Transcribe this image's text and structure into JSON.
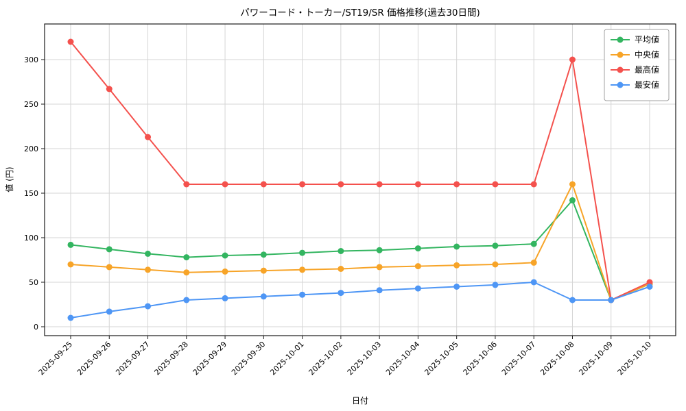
{
  "chart_data": {
    "type": "line",
    "title": "パワーコード・トーカー/ST19/SR 価格推移(過去30日間)",
    "xlabel": "日付",
    "ylabel": "値 (円)",
    "categories": [
      "2025-09-25",
      "2025-09-26",
      "2025-09-27",
      "2025-09-28",
      "2025-09-29",
      "2025-09-30",
      "2025-10-01",
      "2025-10-02",
      "2025-10-03",
      "2025-10-04",
      "2025-10-05",
      "2025-10-06",
      "2025-10-07",
      "2025-10-08",
      "2025-10-09",
      "2025-10-10"
    ],
    "series": [
      {
        "key": "average",
        "name": "平均値",
        "color": "#33b560",
        "values": [
          92,
          87,
          82,
          78,
          80,
          81,
          83,
          85,
          86,
          88,
          90,
          91,
          93,
          142,
          30,
          48
        ]
      },
      {
        "key": "median",
        "name": "中央値",
        "color": "#f7a428",
        "values": [
          70,
          67,
          64,
          61,
          62,
          63,
          64,
          65,
          67,
          68,
          69,
          70,
          72,
          160,
          30,
          48
        ]
      },
      {
        "key": "max",
        "name": "最高値",
        "color": "#f4514d",
        "values": [
          320,
          267,
          213,
          160,
          160,
          160,
          160,
          160,
          160,
          160,
          160,
          160,
          160,
          300,
          30,
          50
        ]
      },
      {
        "key": "min",
        "name": "最安値",
        "color": "#4e96f5",
        "values": [
          10,
          17,
          23,
          30,
          32,
          34,
          36,
          38,
          41,
          43,
          45,
          47,
          50,
          30,
          30,
          45
        ]
      }
    ],
    "ylim": [
      -10,
      340
    ],
    "yticks": [
      0,
      50,
      100,
      150,
      200,
      250,
      300
    ],
    "grid": true,
    "legend_position": "top-right",
    "colors": {
      "background": "#ffffff",
      "grid": "#d5d5d5",
      "spine": "#1a1a1a",
      "tick": "#1a1a1a"
    }
  }
}
